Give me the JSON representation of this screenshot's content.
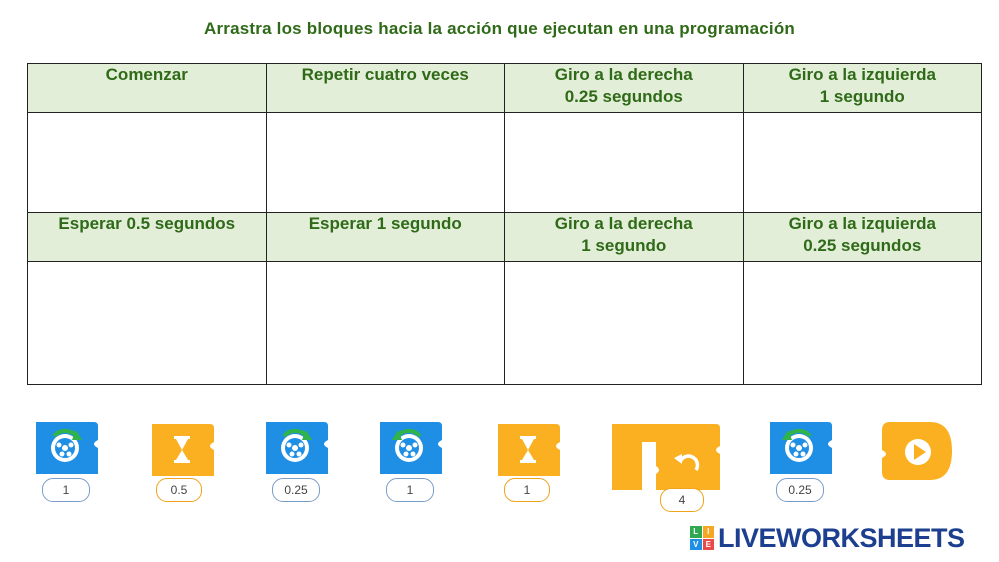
{
  "title": "Arrastra los bloques hacia la acción que ejecutan en una programación",
  "row1": [
    {
      "line1": "Comenzar",
      "line2": ""
    },
    {
      "line1": "Repetir cuatro veces",
      "line2": ""
    },
    {
      "line1": "Giro a la derecha",
      "line2": "0.25 segundos"
    },
    {
      "line1": "Giro a la izquierda",
      "line2": "1 segundo"
    }
  ],
  "row2": [
    {
      "line1": "Esperar 0.5 segundos",
      "line2": ""
    },
    {
      "line1": "Esperar 1 segundo",
      "line2": ""
    },
    {
      "line1": "Giro a la derecha",
      "line2": "1 segundo"
    },
    {
      "line1": "Giro a la izquierda",
      "line2": "0.25 segundos"
    }
  ],
  "blocks": [
    {
      "kind": "turn-right-icon",
      "color": "#1f8fe5",
      "value": "1"
    },
    {
      "kind": "wait-icon",
      "color": "#fbb022",
      "value": "0.5"
    },
    {
      "kind": "turn-right-icon",
      "color": "#1f8fe5",
      "value": "0.25"
    },
    {
      "kind": "turn-left-icon",
      "color": "#1f8fe5",
      "value": "1"
    },
    {
      "kind": "wait-icon",
      "color": "#fbb022",
      "value": "1"
    },
    {
      "kind": "repeat-icon",
      "color": "#fbb022",
      "value": "4"
    },
    {
      "kind": "turn-left-icon",
      "color": "#1f8fe5",
      "value": "0.25"
    },
    {
      "kind": "start-flag-icon",
      "color": "#fbb022",
      "value": ""
    }
  ],
  "logo": {
    "badge": [
      "L",
      "I",
      "V",
      "E"
    ],
    "text": "LIVEWORKSHEETS"
  }
}
